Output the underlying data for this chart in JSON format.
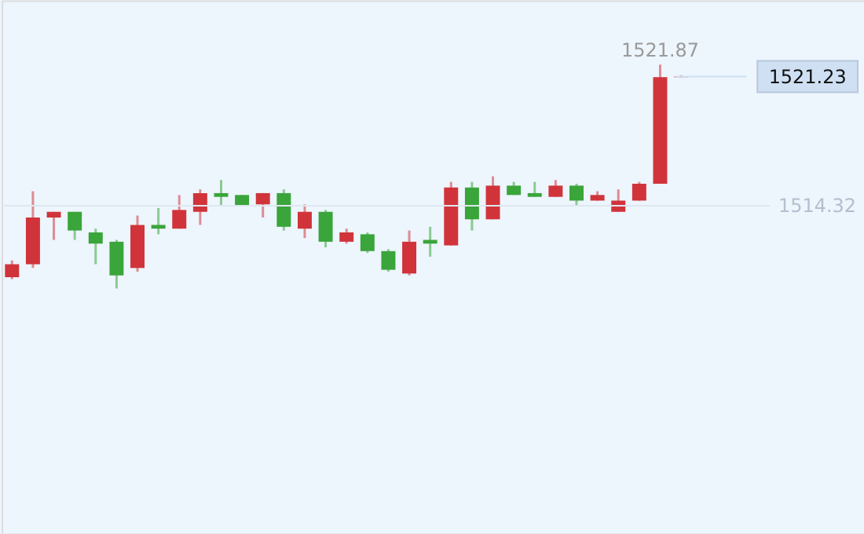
{
  "chart_data": {
    "type": "candlestick",
    "categories": [
      null,
      null,
      null,
      null,
      null,
      null,
      null,
      null,
      null,
      null,
      null,
      null,
      null,
      null,
      null,
      null,
      null,
      null,
      null,
      null,
      null,
      null,
      null,
      null,
      null,
      null,
      null,
      null,
      null,
      null,
      null,
      null,
      null
    ],
    "ohlc": [
      [
        1510.5,
        1511.4,
        1510.4,
        1511.2
      ],
      [
        1511.2,
        1515.1,
        1511.0,
        1513.7
      ],
      [
        1513.7,
        1514.0,
        1512.5,
        1514.0
      ],
      [
        1514.0,
        1514.0,
        1512.5,
        1513.0
      ],
      [
        1512.9,
        1513.1,
        1511.2,
        1512.3
      ],
      [
        1512.4,
        1512.5,
        1509.9,
        1510.6
      ],
      [
        1511.0,
        1513.8,
        1510.8,
        1513.3
      ],
      [
        1513.3,
        1514.2,
        1512.8,
        1513.1
      ],
      [
        1513.1,
        1514.9,
        1513.1,
        1514.1
      ],
      [
        1514.0,
        1515.2,
        1513.3,
        1515.0
      ],
      [
        1515.0,
        1515.7,
        1514.3,
        1514.8
      ],
      [
        1514.9,
        1514.9,
        1514.3,
        1514.3
      ],
      [
        1514.4,
        1515.0,
        1513.7,
        1515.0
      ],
      [
        1515.0,
        1515.2,
        1513.0,
        1513.2
      ],
      [
        1513.1,
        1514.4,
        1512.6,
        1514.0
      ],
      [
        1514.0,
        1514.1,
        1512.1,
        1512.4
      ],
      [
        1512.4,
        1513.1,
        1512.3,
        1512.9
      ],
      [
        1512.8,
        1512.9,
        1511.8,
        1511.9
      ],
      [
        1511.9,
        1512.0,
        1510.8,
        1510.9
      ],
      [
        1510.7,
        1513.0,
        1510.6,
        1512.4
      ],
      [
        1512.5,
        1513.2,
        1511.6,
        1512.3
      ],
      [
        1512.2,
        1515.6,
        1512.2,
        1515.3
      ],
      [
        1515.3,
        1515.6,
        1513.0,
        1513.6
      ],
      [
        1513.6,
        1515.9,
        1513.6,
        1515.4
      ],
      [
        1515.4,
        1515.6,
        1514.9,
        1514.9
      ],
      [
        1515.0,
        1515.6,
        1514.8,
        1514.8
      ],
      [
        1514.8,
        1515.7,
        1514.8,
        1515.4
      ],
      [
        1515.4,
        1515.5,
        1514.3,
        1514.6
      ],
      [
        1514.6,
        1515.1,
        1514.6,
        1514.9
      ],
      [
        1514.0,
        1515.2,
        1514.0,
        1514.6
      ],
      [
        1514.6,
        1515.6,
        1514.6,
        1515.5
      ],
      [
        1515.5,
        1521.87,
        1515.5,
        1521.2
      ],
      [
        1521.2,
        1521.3,
        1521.2,
        1521.23
      ]
    ],
    "colors": [
      "#d0343a",
      "#d0343a",
      "#d0343a",
      "#3aa53a",
      "#3aa53a",
      "#3aa53a",
      "#d0343a",
      "#3aa53a",
      "#d0343a",
      "#d0343a",
      "#3aa53a",
      "#3aa53a",
      "#d0343a",
      "#3aa53a",
      "#d0343a",
      "#3aa53a",
      "#d0343a",
      "#3aa53a",
      "#3aa53a",
      "#d0343a",
      "#3aa53a",
      "#d0343a",
      "#3aa53a",
      "#d0343a",
      "#3aa53a",
      "#3aa53a",
      "#d0343a",
      "#3aa53a",
      "#d0343a",
      "#d0343a",
      "#d0343a",
      "#d0343a",
      "#d0343a"
    ],
    "ylim": [
      1496.8,
      1525.3
    ],
    "tick_labels": false,
    "ref_lines": [
      {
        "axis": "y",
        "value": 1521.23,
        "label": "1521.23",
        "color": "#cfe0f3"
      },
      {
        "axis": "y",
        "value": 1514.32,
        "label": "1514.32",
        "color": "#dfe7f0"
      }
    ],
    "annotations": [
      {
        "text": "1521.87",
        "y": 1521.87
      }
    ]
  }
}
